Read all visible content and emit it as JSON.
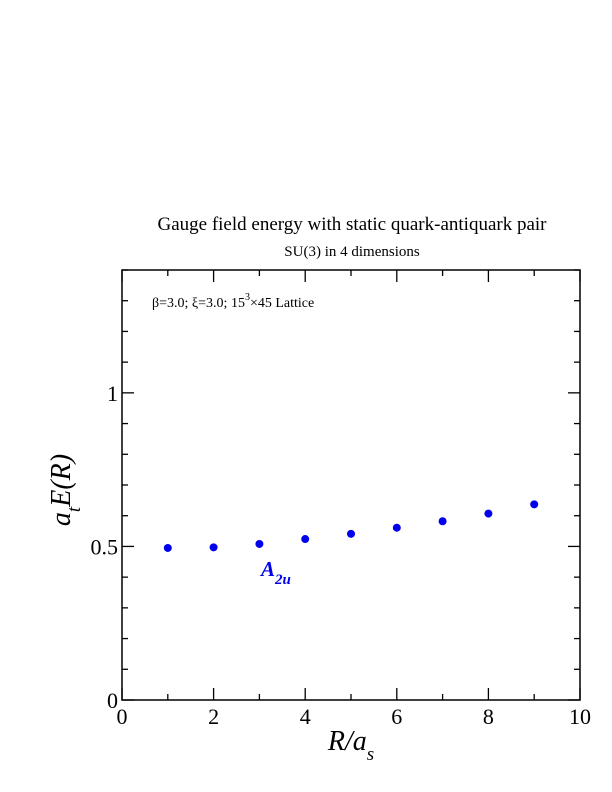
{
  "chart_data": {
    "type": "scatter",
    "title": "Gauge field energy with static quark-antiquark pair",
    "subtitle": "SU(3) in 4 dimensions",
    "annotation": {
      "beta": "β=3.0;",
      "xi": "ξ=3.0;",
      "lattice_base": "15",
      "lattice_exp": "3",
      "lattice_rest": "×45 Lattice"
    },
    "xlabel": {
      "main": "R/a",
      "sub": "s"
    },
    "ylabel": {
      "pre": "a",
      "sub": "t",
      "post": "E(R)"
    },
    "xlim": [
      0,
      10
    ],
    "ylim": [
      0,
      1.4
    ],
    "x_ticks": [
      "0",
      "2",
      "4",
      "6",
      "8",
      "10"
    ],
    "y_ticks": [
      "0",
      "0.5",
      "1"
    ],
    "grid": false,
    "series": [
      {
        "name": "A2u",
        "label_main": "A",
        "label_sub": "2u",
        "color": "#0000ee",
        "x": [
          1,
          2,
          3,
          4,
          5,
          6,
          7,
          8,
          9
        ],
        "y": [
          0.495,
          0.497,
          0.508,
          0.524,
          0.541,
          0.561,
          0.582,
          0.607,
          0.637
        ]
      }
    ]
  }
}
